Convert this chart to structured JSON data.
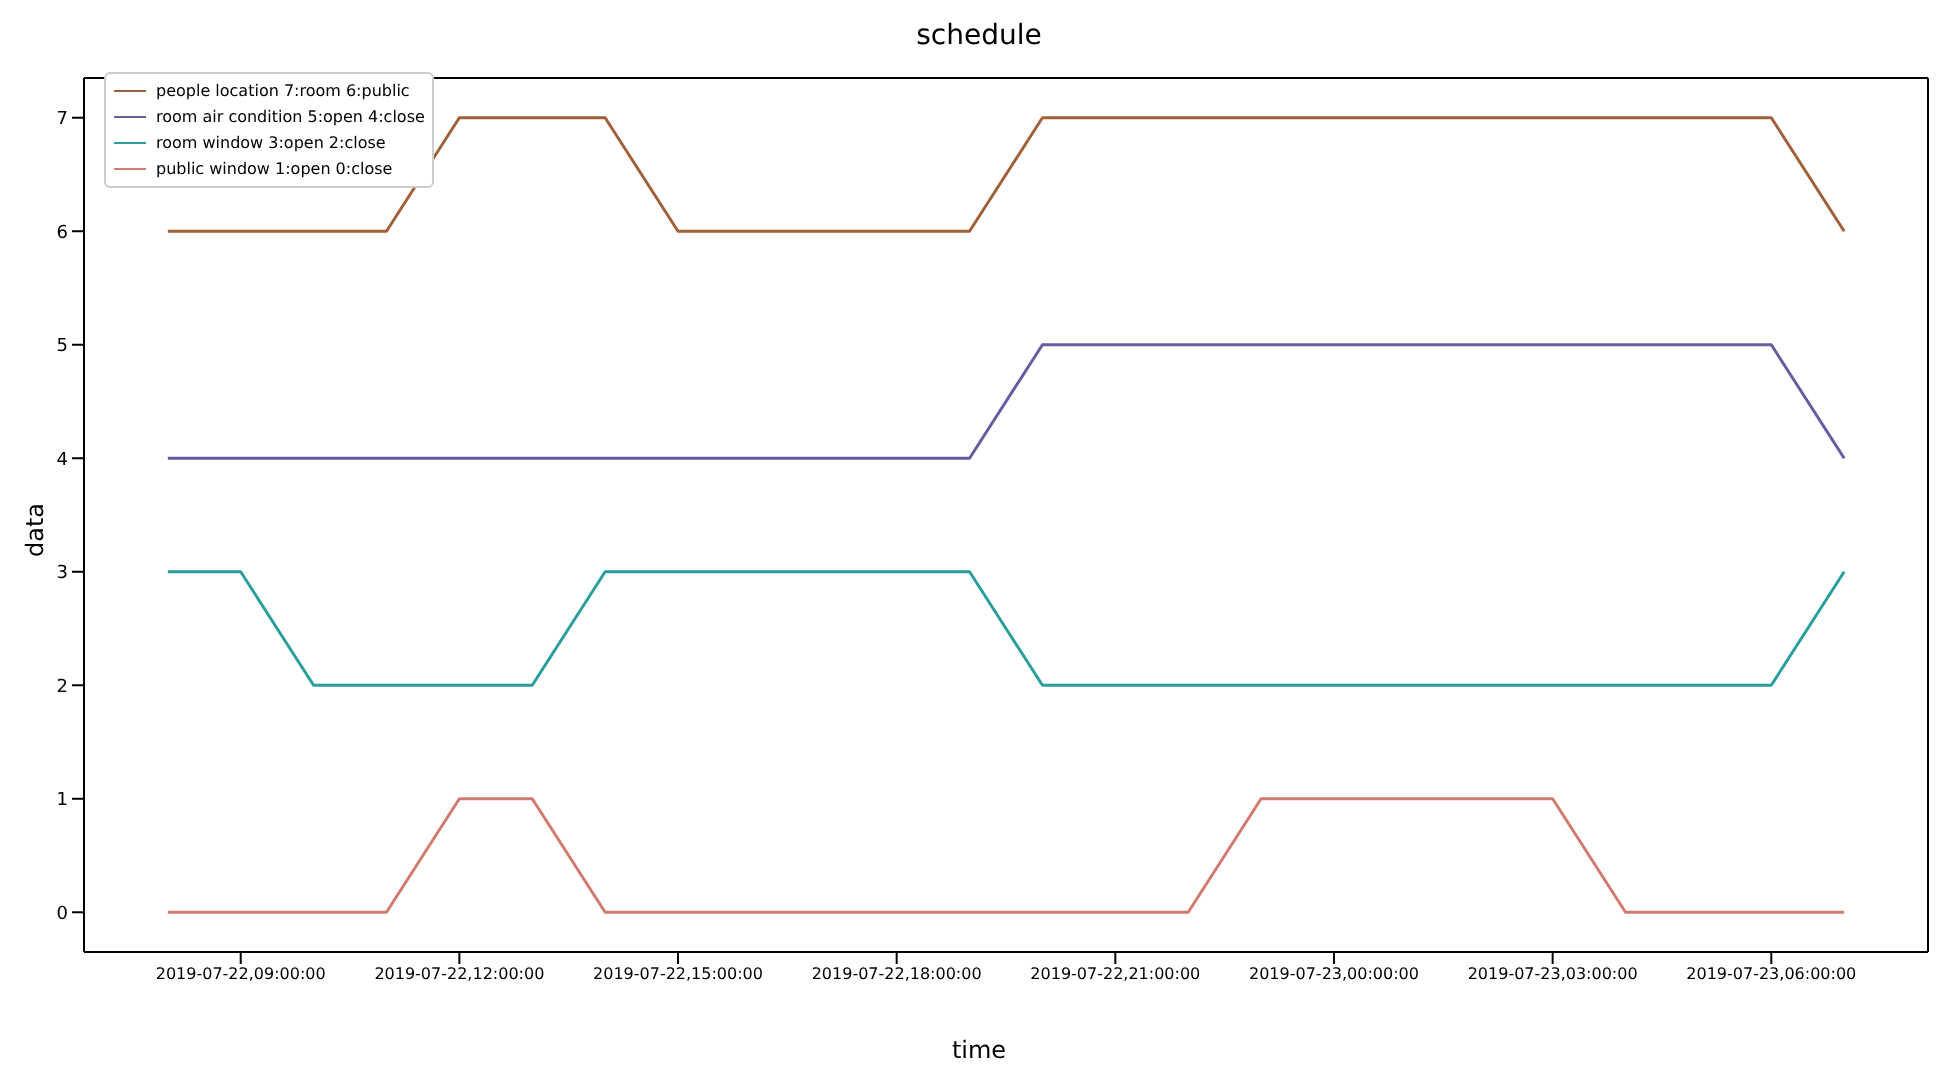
{
  "chart_data": {
    "type": "line",
    "title": "schedule",
    "xlabel": "time",
    "ylabel": "data",
    "x": [
      "2019-07-22T08:00",
      "2019-07-22T09:00",
      "2019-07-22T10:00",
      "2019-07-22T11:00",
      "2019-07-22T12:00",
      "2019-07-22T13:00",
      "2019-07-22T14:00",
      "2019-07-22T15:00",
      "2019-07-22T16:00",
      "2019-07-22T17:00",
      "2019-07-22T18:00",
      "2019-07-22T19:00",
      "2019-07-22T20:00",
      "2019-07-22T21:00",
      "2019-07-22T22:00",
      "2019-07-22T23:00",
      "2019-07-23T00:00",
      "2019-07-23T01:00",
      "2019-07-23T02:00",
      "2019-07-23T03:00",
      "2019-07-23T04:00",
      "2019-07-23T05:00",
      "2019-07-23T06:00",
      "2019-07-23T07:00"
    ],
    "series": [
      {
        "name": "people location 7:room 6:public",
        "color": "#a0603a",
        "values": [
          6,
          6,
          6,
          6,
          7,
          7,
          7,
          6,
          6,
          6,
          6,
          6,
          7,
          7,
          7,
          7,
          7,
          7,
          7,
          7,
          7,
          7,
          7,
          6
        ]
      },
      {
        "name": "room air condition 5:open 4:close",
        "color": "#6a5aa0",
        "values": [
          4,
          4,
          4,
          4,
          4,
          4,
          4,
          4,
          4,
          4,
          4,
          4,
          5,
          5,
          5,
          5,
          5,
          5,
          5,
          5,
          5,
          5,
          5,
          4
        ]
      },
      {
        "name": "room window 3:open 2:close",
        "color": "#2a9d9d",
        "values": [
          3,
          3,
          2,
          2,
          2,
          2,
          3,
          3,
          3,
          3,
          3,
          3,
          2,
          2,
          2,
          2,
          2,
          2,
          2,
          2,
          2,
          2,
          2,
          3
        ]
      },
      {
        "name": "public window 1:open 0:close",
        "color": "#d07a70",
        "values": [
          0,
          0,
          0,
          0,
          1,
          1,
          0,
          0,
          0,
          0,
          0,
          0,
          0,
          0,
          0,
          1,
          1,
          1,
          1,
          1,
          0,
          0,
          0,
          0
        ]
      }
    ],
    "xlim": [
      "2019-07-22T06:51",
      "2019-07-23T08:09"
    ],
    "xticks": [
      {
        "value": "2019-07-22T09:00",
        "label": "2019-07-22,09:00:00"
      },
      {
        "value": "2019-07-22T12:00",
        "label": "2019-07-22,12:00:00"
      },
      {
        "value": "2019-07-22T15:00",
        "label": "2019-07-22,15:00:00"
      },
      {
        "value": "2019-07-22T18:00",
        "label": "2019-07-22,18:00:00"
      },
      {
        "value": "2019-07-22T21:00",
        "label": "2019-07-22,21:00:00"
      },
      {
        "value": "2019-07-23T00:00",
        "label": "2019-07-23,00:00:00"
      },
      {
        "value": "2019-07-23T03:00",
        "label": "2019-07-23,03:00:00"
      },
      {
        "value": "2019-07-23T06:00",
        "label": "2019-07-23,06:00:00"
      }
    ],
    "ylim": [
      -0.35,
      7.35
    ],
    "yticks": [
      0,
      1,
      2,
      3,
      4,
      5,
      6,
      7
    ],
    "grid": false,
    "legend": "top left",
    "marker": "none",
    "line_style": "solid"
  }
}
